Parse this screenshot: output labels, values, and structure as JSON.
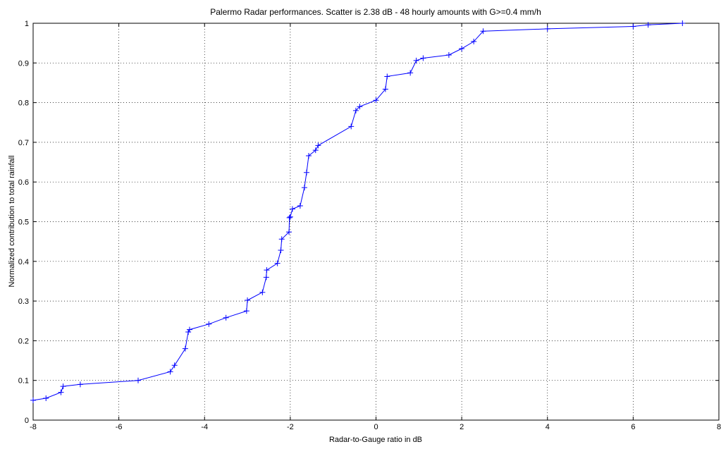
{
  "chart_data": {
    "type": "line",
    "title": "Palermo Radar performances. Scatter is 2.38 dB - 48 hourly amounts with G>=0.4 mm/h",
    "xlabel": "Radar-to-Gauge ratio in dB",
    "ylabel": "Normalized contribution to total rainfall",
    "xlim": [
      -8,
      8
    ],
    "ylim": [
      0,
      1
    ],
    "xticks": [
      "-8",
      "-6",
      "-4",
      "-2",
      "0",
      "2",
      "4",
      "6",
      "8"
    ],
    "yticks": [
      "0",
      "0.1",
      "0.2",
      "0.3",
      "0.4",
      "0.5",
      "0.6",
      "0.7",
      "0.8",
      "0.9",
      "1"
    ],
    "grid": true,
    "grid_style": "dotted",
    "line_color": "#0000ff",
    "marker": "+",
    "series": [
      {
        "x": [
          -8.0,
          -7.7,
          -7.35,
          -7.3,
          -6.9,
          -5.55,
          -4.8,
          -4.7,
          -4.45,
          -4.38,
          -4.35,
          -3.9,
          -3.5,
          -3.02,
          -3.0,
          -2.65,
          -2.56,
          -2.55,
          -2.3,
          -2.22,
          -2.2,
          -2.03,
          -2.02,
          -2.0,
          -1.95,
          -1.77,
          -1.67,
          -1.62,
          -1.57,
          -1.41,
          -1.35,
          -0.58,
          -0.47,
          -0.38,
          0.0,
          0.22,
          0.26,
          0.8,
          0.94,
          1.1,
          1.7,
          2.0,
          2.28,
          2.5,
          4.0,
          6.0,
          6.35,
          7.15
        ],
        "y": [
          0.05,
          0.055,
          0.07,
          0.085,
          0.09,
          0.1,
          0.122,
          0.138,
          0.18,
          0.222,
          0.228,
          0.242,
          0.258,
          0.275,
          0.302,
          0.322,
          0.36,
          0.378,
          0.395,
          0.428,
          0.456,
          0.474,
          0.51,
          0.512,
          0.532,
          0.54,
          0.586,
          0.624,
          0.666,
          0.68,
          0.692,
          0.74,
          0.78,
          0.79,
          0.806,
          0.834,
          0.866,
          0.875,
          0.906,
          0.912,
          0.92,
          0.936,
          0.954,
          0.98,
          0.986,
          0.992,
          0.996,
          1.0
        ]
      }
    ]
  }
}
